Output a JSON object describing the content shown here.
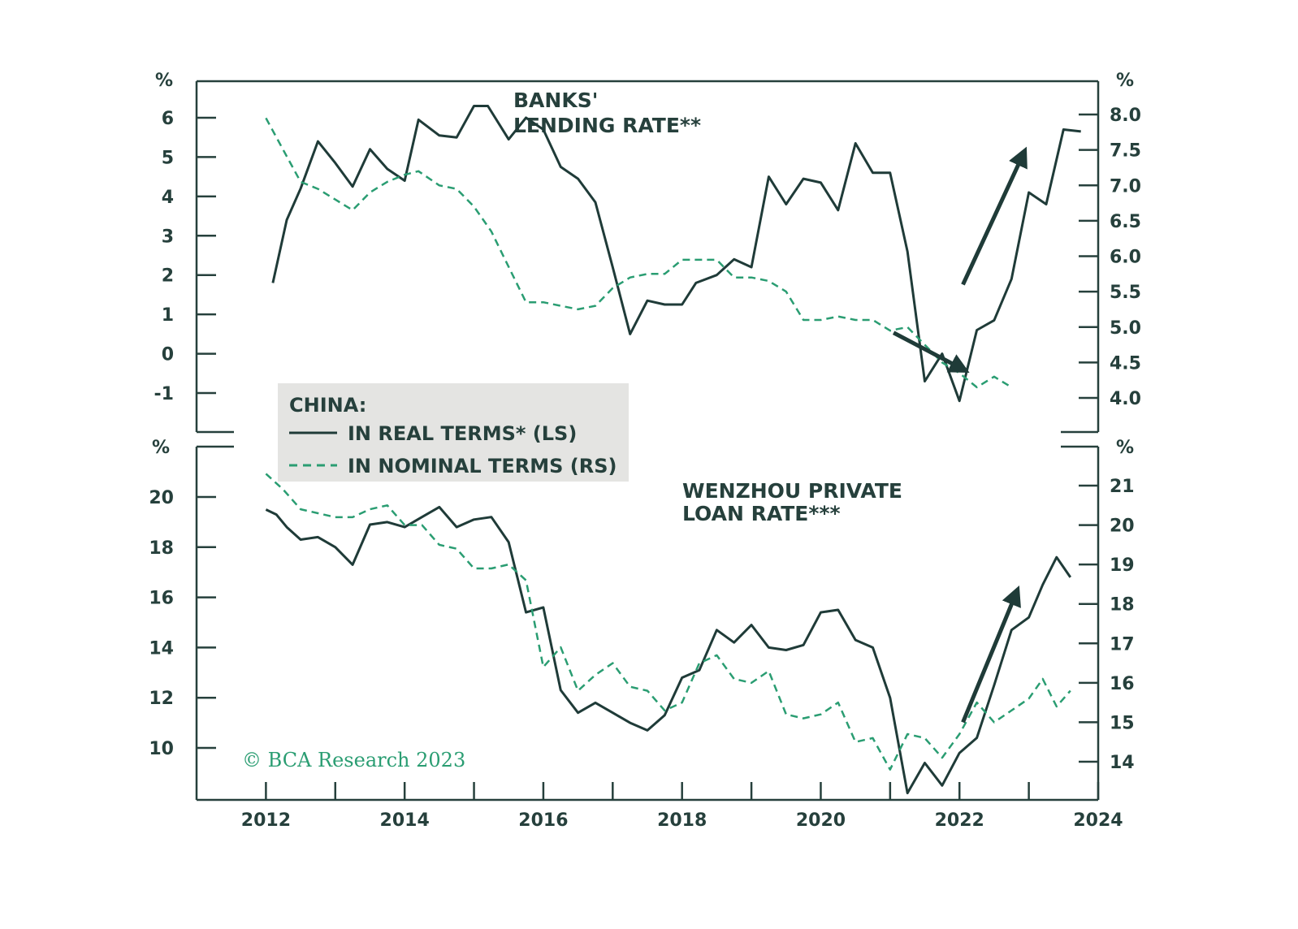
{
  "colors": {
    "real": "#1f3b38",
    "nominal": "#2a9d72",
    "axis": "#26403c",
    "legend_bg": "#e4e4e2",
    "copyright": "#2a9d72"
  },
  "legend": {
    "title": "CHINA:",
    "real_label": "IN REAL TERMS* (LS)",
    "nominal_label": "IN NOMINAL TERMS (RS)"
  },
  "copyright": "© BCA Research 2023",
  "chart_data": [
    {
      "type": "line",
      "title_line1": "BANKS'",
      "title_line2": "LENDING RATE**",
      "left_unit": "%",
      "right_unit": "%",
      "left_ticks": [
        "6",
        "5",
        "4",
        "3",
        "2",
        "1",
        "0",
        "-1"
      ],
      "right_ticks": [
        "8.0",
        "7.5",
        "7.0",
        "6.5",
        "6.0",
        "5.5",
        "5.0",
        "4.5",
        "4.0"
      ],
      "ylim_left": [
        -2.0,
        6.8
      ],
      "ylim_right": [
        3.5,
        8.5
      ],
      "arrows": [
        {
          "from": [
            2021.05,
            4.92
          ],
          "to": [
            2022.0,
            4.43
          ]
        },
        {
          "from": [
            2022.05,
            5.6
          ],
          "to": [
            2022.9,
            7.4
          ]
        }
      ],
      "series": [
        {
          "name": "IN REAL TERMS* (LS)",
          "axis": "left",
          "style": "solid",
          "x": [
            2012.1,
            2012.3,
            2012.5,
            2012.75,
            2013.0,
            2013.25,
            2013.5,
            2013.75,
            2014.0,
            2014.2,
            2014.5,
            2014.75,
            2015.0,
            2015.2,
            2015.5,
            2015.75,
            2016.0,
            2016.25,
            2016.5,
            2016.75,
            2017.0,
            2017.25,
            2017.5,
            2017.75,
            2018.0,
            2018.2,
            2018.5,
            2018.75,
            2019.0,
            2019.25,
            2019.5,
            2019.75,
            2020.0,
            2020.25,
            2020.5,
            2020.75,
            2021.0,
            2021.25,
            2021.5,
            2021.75,
            2022.0,
            2022.25,
            2022.5,
            2022.75,
            2023.0,
            2023.25,
            2023.5,
            2023.75
          ],
          "values": [
            1.8,
            3.4,
            4.2,
            5.4,
            4.85,
            4.25,
            5.2,
            4.7,
            4.4,
            5.95,
            5.55,
            5.5,
            6.3,
            6.3,
            5.45,
            6.0,
            5.7,
            4.75,
            4.45,
            3.85,
            2.2,
            0.5,
            1.35,
            1.25,
            1.25,
            1.8,
            2.0,
            2.4,
            2.2,
            4.5,
            3.8,
            4.45,
            4.35,
            3.65,
            5.35,
            4.6,
            4.6,
            2.6,
            -0.7,
            0.0,
            -1.2,
            0.6,
            0.85,
            1.9,
            4.1,
            3.8,
            5.7,
            5.65
          ]
        },
        {
          "name": "IN NOMINAL TERMS (RS)",
          "axis": "right",
          "style": "dashed",
          "x": [
            2012.0,
            2012.25,
            2012.5,
            2012.75,
            2013.0,
            2013.25,
            2013.5,
            2013.75,
            2014.0,
            2014.2,
            2014.5,
            2014.75,
            2015.0,
            2015.25,
            2015.5,
            2015.75,
            2016.0,
            2016.25,
            2016.5,
            2016.75,
            2017.0,
            2017.25,
            2017.5,
            2017.75,
            2018.0,
            2018.25,
            2018.5,
            2018.75,
            2019.0,
            2019.25,
            2019.5,
            2019.75,
            2020.0,
            2020.25,
            2020.5,
            2020.75,
            2021.0,
            2021.25,
            2021.5,
            2021.75,
            2022.0,
            2022.25,
            2022.5,
            2022.75
          ],
          "values": [
            7.95,
            7.5,
            7.05,
            6.95,
            6.8,
            6.65,
            6.9,
            7.05,
            7.15,
            7.2,
            7.0,
            6.95,
            6.7,
            6.35,
            5.85,
            5.35,
            5.35,
            5.3,
            5.25,
            5.3,
            5.55,
            5.7,
            5.75,
            5.75,
            5.95,
            5.95,
            5.95,
            5.7,
            5.7,
            5.65,
            5.5,
            5.1,
            5.1,
            5.15,
            5.1,
            5.1,
            4.95,
            5.0,
            4.75,
            4.5,
            4.35,
            4.15,
            4.3,
            4.15
          ]
        }
      ]
    },
    {
      "type": "line",
      "title_line1": "WENZHOU PRIVATE",
      "title_line2": "LOAN RATE***",
      "left_unit": "%",
      "right_unit": "%",
      "left_ticks": [
        "20",
        "18",
        "16",
        "14",
        "12",
        "10"
      ],
      "right_ticks": [
        "21",
        "20",
        "19",
        "18",
        "17",
        "16",
        "15",
        "14"
      ],
      "ylim_left": [
        8.0,
        22.0
      ],
      "ylim_right": [
        13.0,
        22.0
      ],
      "x_ticks": [
        "2012",
        "2014",
        "2016",
        "2018",
        "2020",
        "2022",
        "2024"
      ],
      "xlim": [
        2011.0,
        2024.0
      ],
      "arrows": [
        {
          "from": [
            2022.05,
            15.0
          ],
          "to": [
            2022.8,
            18.2
          ]
        }
      ],
      "series": [
        {
          "name": "IN REAL TERMS* (LS)",
          "axis": "left",
          "style": "solid",
          "x": [
            2012.0,
            2012.15,
            2012.3,
            2012.5,
            2012.75,
            2013.0,
            2013.25,
            2013.5,
            2013.75,
            2014.0,
            2014.25,
            2014.5,
            2014.75,
            2015.0,
            2015.25,
            2015.5,
            2015.75,
            2016.0,
            2016.25,
            2016.5,
            2016.75,
            2017.0,
            2017.25,
            2017.5,
            2017.75,
            2018.0,
            2018.25,
            2018.5,
            2018.75,
            2019.0,
            2019.25,
            2019.5,
            2019.75,
            2020.0,
            2020.25,
            2020.5,
            2020.75,
            2021.0,
            2021.25,
            2021.5,
            2021.75,
            2022.0,
            2022.25,
            2022.5,
            2022.75,
            2023.0,
            2023.2,
            2023.4,
            2023.6
          ],
          "values": [
            19.5,
            19.3,
            18.8,
            18.3,
            18.4,
            18.0,
            17.3,
            18.9,
            19.0,
            18.8,
            19.2,
            19.6,
            18.8,
            19.1,
            19.2,
            18.2,
            15.4,
            15.6,
            12.3,
            11.4,
            11.8,
            11.4,
            11.0,
            10.7,
            11.3,
            12.8,
            13.1,
            14.7,
            14.2,
            14.9,
            14.0,
            13.9,
            14.1,
            15.4,
            15.5,
            14.3,
            14.0,
            12.0,
            8.2,
            9.4,
            8.5,
            9.8,
            10.4,
            12.5,
            14.7,
            15.2,
            16.5,
            17.6,
            16.8
          ]
        },
        {
          "name": "IN NOMINAL TERMS (RS)",
          "axis": "right",
          "style": "dashed",
          "x": [
            2012.0,
            2012.25,
            2012.5,
            2012.75,
            2013.0,
            2013.25,
            2013.5,
            2013.75,
            2014.0,
            2014.25,
            2014.5,
            2014.75,
            2015.0,
            2015.25,
            2015.5,
            2015.75,
            2016.0,
            2016.25,
            2016.5,
            2016.75,
            2017.0,
            2017.25,
            2017.5,
            2017.75,
            2018.0,
            2018.25,
            2018.5,
            2018.75,
            2019.0,
            2019.25,
            2019.5,
            2019.75,
            2020.0,
            2020.25,
            2020.5,
            2020.75,
            2021.0,
            2021.25,
            2021.5,
            2021.75,
            2022.0,
            2022.25,
            2022.5,
            2022.75,
            2023.0,
            2023.2,
            2023.4,
            2023.6
          ],
          "values": [
            21.3,
            20.9,
            20.4,
            20.3,
            20.2,
            20.2,
            20.4,
            20.5,
            20.0,
            20.0,
            19.5,
            19.4,
            18.9,
            18.9,
            19.0,
            18.6,
            16.4,
            16.9,
            15.8,
            16.2,
            16.5,
            15.9,
            15.8,
            15.3,
            15.5,
            16.5,
            16.7,
            16.1,
            16.0,
            16.3,
            15.2,
            15.1,
            15.2,
            15.5,
            14.5,
            14.6,
            13.8,
            14.7,
            14.6,
            14.1,
            14.7,
            15.5,
            15.0,
            15.3,
            15.6,
            16.1,
            15.4,
            15.8
          ]
        }
      ]
    }
  ]
}
